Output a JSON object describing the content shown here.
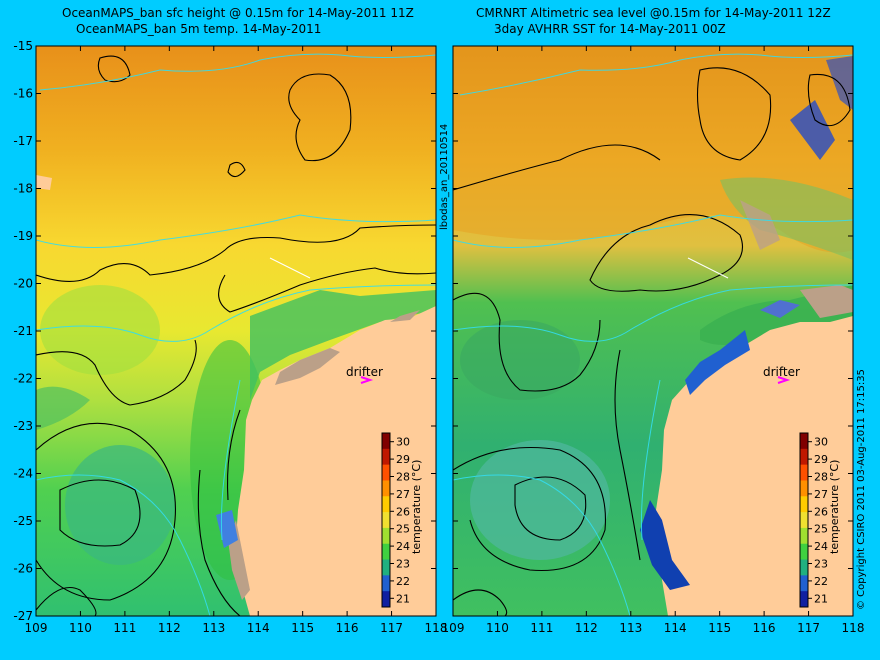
{
  "titles": {
    "left_line1": "OceanMAPS_ban sfc height @ 0.15m for 14-May-2011 11Z",
    "left_line2": "OceanMAPS_ban 5m temp. 14-May-2011",
    "right_line1": "CMRNRT Altimetric sea level  @0.15m  for 14-May-2011 12Z",
    "right_line2": "3day AVHRR SST for 14-May-2011 00Z"
  },
  "axes": {
    "lat_ticks": [
      "-15",
      "-16",
      "-17",
      "-18",
      "-19",
      "-20",
      "-21",
      "-22",
      "-23",
      "-24",
      "-25",
      "-26",
      "-27"
    ],
    "lon_ticks": [
      "109",
      "110",
      "111",
      "112",
      "113",
      "114",
      "115",
      "116",
      "117",
      "118"
    ]
  },
  "colorbar": {
    "label": "temperature (°C)",
    "ticks": [
      "30",
      "29",
      "28",
      "27",
      "26",
      "25",
      "24",
      "23",
      "22",
      "21"
    ],
    "range": [
      20.5,
      30.5
    ]
  },
  "drifter_label": "drifter",
  "side_label": "lbodas_an_20110514",
  "copyright": "© Copyright CSIRO 2011   03-Aug-2011 17:15:35",
  "colors": {
    "background": "#00ccff",
    "land": "#ffcc99",
    "drifter_marker": "#ff00ff",
    "contour": "#000000",
    "bathymetry": "#33ddee"
  }
}
